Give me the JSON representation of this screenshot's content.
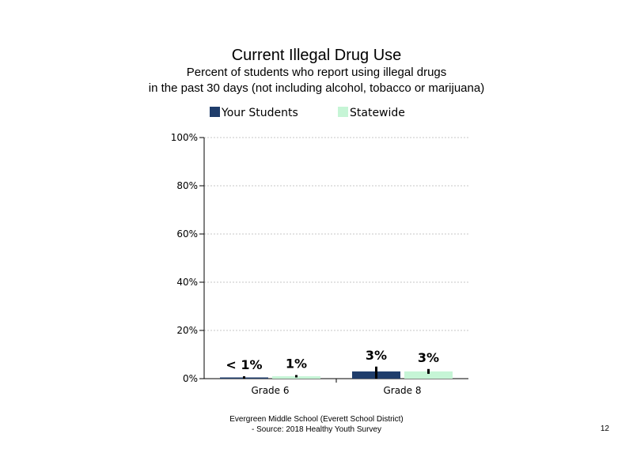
{
  "chart_data": {
    "type": "bar",
    "title": "Current Illegal Drug Use",
    "subtitle_lines": [
      "Percent of students who report using illegal drugs",
      "in the past 30 days (not including alcohol, tobacco or marijuana)"
    ],
    "categories": [
      "Grade 6",
      "Grade 8"
    ],
    "series": [
      {
        "name": "Your Students",
        "color": "#1f3d6b",
        "values": [
          0.5,
          3
        ],
        "labels": [
          "< 1%",
          "3%"
        ],
        "error": [
          [
            0,
            1
          ],
          [
            0,
            5
          ]
        ]
      },
      {
        "name": "Statewide",
        "color": "#c6f5d6",
        "values": [
          1,
          3
        ],
        "labels": [
          "1%",
          "3%"
        ],
        "error": [
          [
            0.5,
            1.5
          ],
          [
            2,
            4
          ]
        ]
      }
    ],
    "ylim": [
      0,
      100
    ],
    "yticks": [
      0,
      20,
      40,
      60,
      80,
      100
    ],
    "ytick_labels": [
      "0%",
      "20%",
      "40%",
      "60%",
      "80%",
      "100%"
    ],
    "grid": true,
    "legend_position": "top"
  },
  "footer": {
    "line1": "Evergreen Middle School (Everett School District)",
    "line2": "- Source: 2018 Healthy Youth Survey"
  },
  "page_number": "12"
}
